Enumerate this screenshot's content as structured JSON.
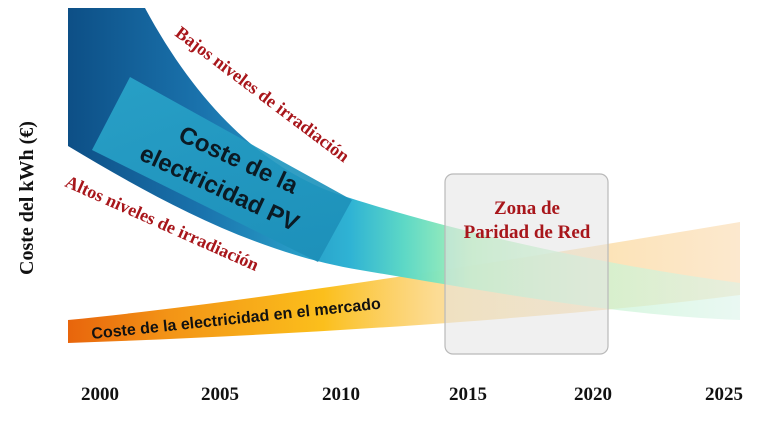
{
  "y_axis_label": "Coste del kWh (€)",
  "x_ticks": [
    "2000",
    "2005",
    "2010",
    "2015",
    "2020",
    "2025"
  ],
  "bands": {
    "low_irradiation": "Bajos niveles de irradiación",
    "high_irradiation": "Altos niveles de irradiación",
    "pv_cost_line1": "Coste de la",
    "pv_cost_line2": "electricidad PV",
    "market_cost": "Coste de la electricidad en el mercado"
  },
  "zone": {
    "line1": "Zona de",
    "line2": "Paridad de Red"
  },
  "colors": {
    "pv_dark": "#0f5d95",
    "pv_light": "#28a9cf",
    "transition_green": "#9ff0b4",
    "market_orange": "#f7a21b",
    "market_dark": "#e8650c",
    "label_red": "#a8161b"
  }
}
